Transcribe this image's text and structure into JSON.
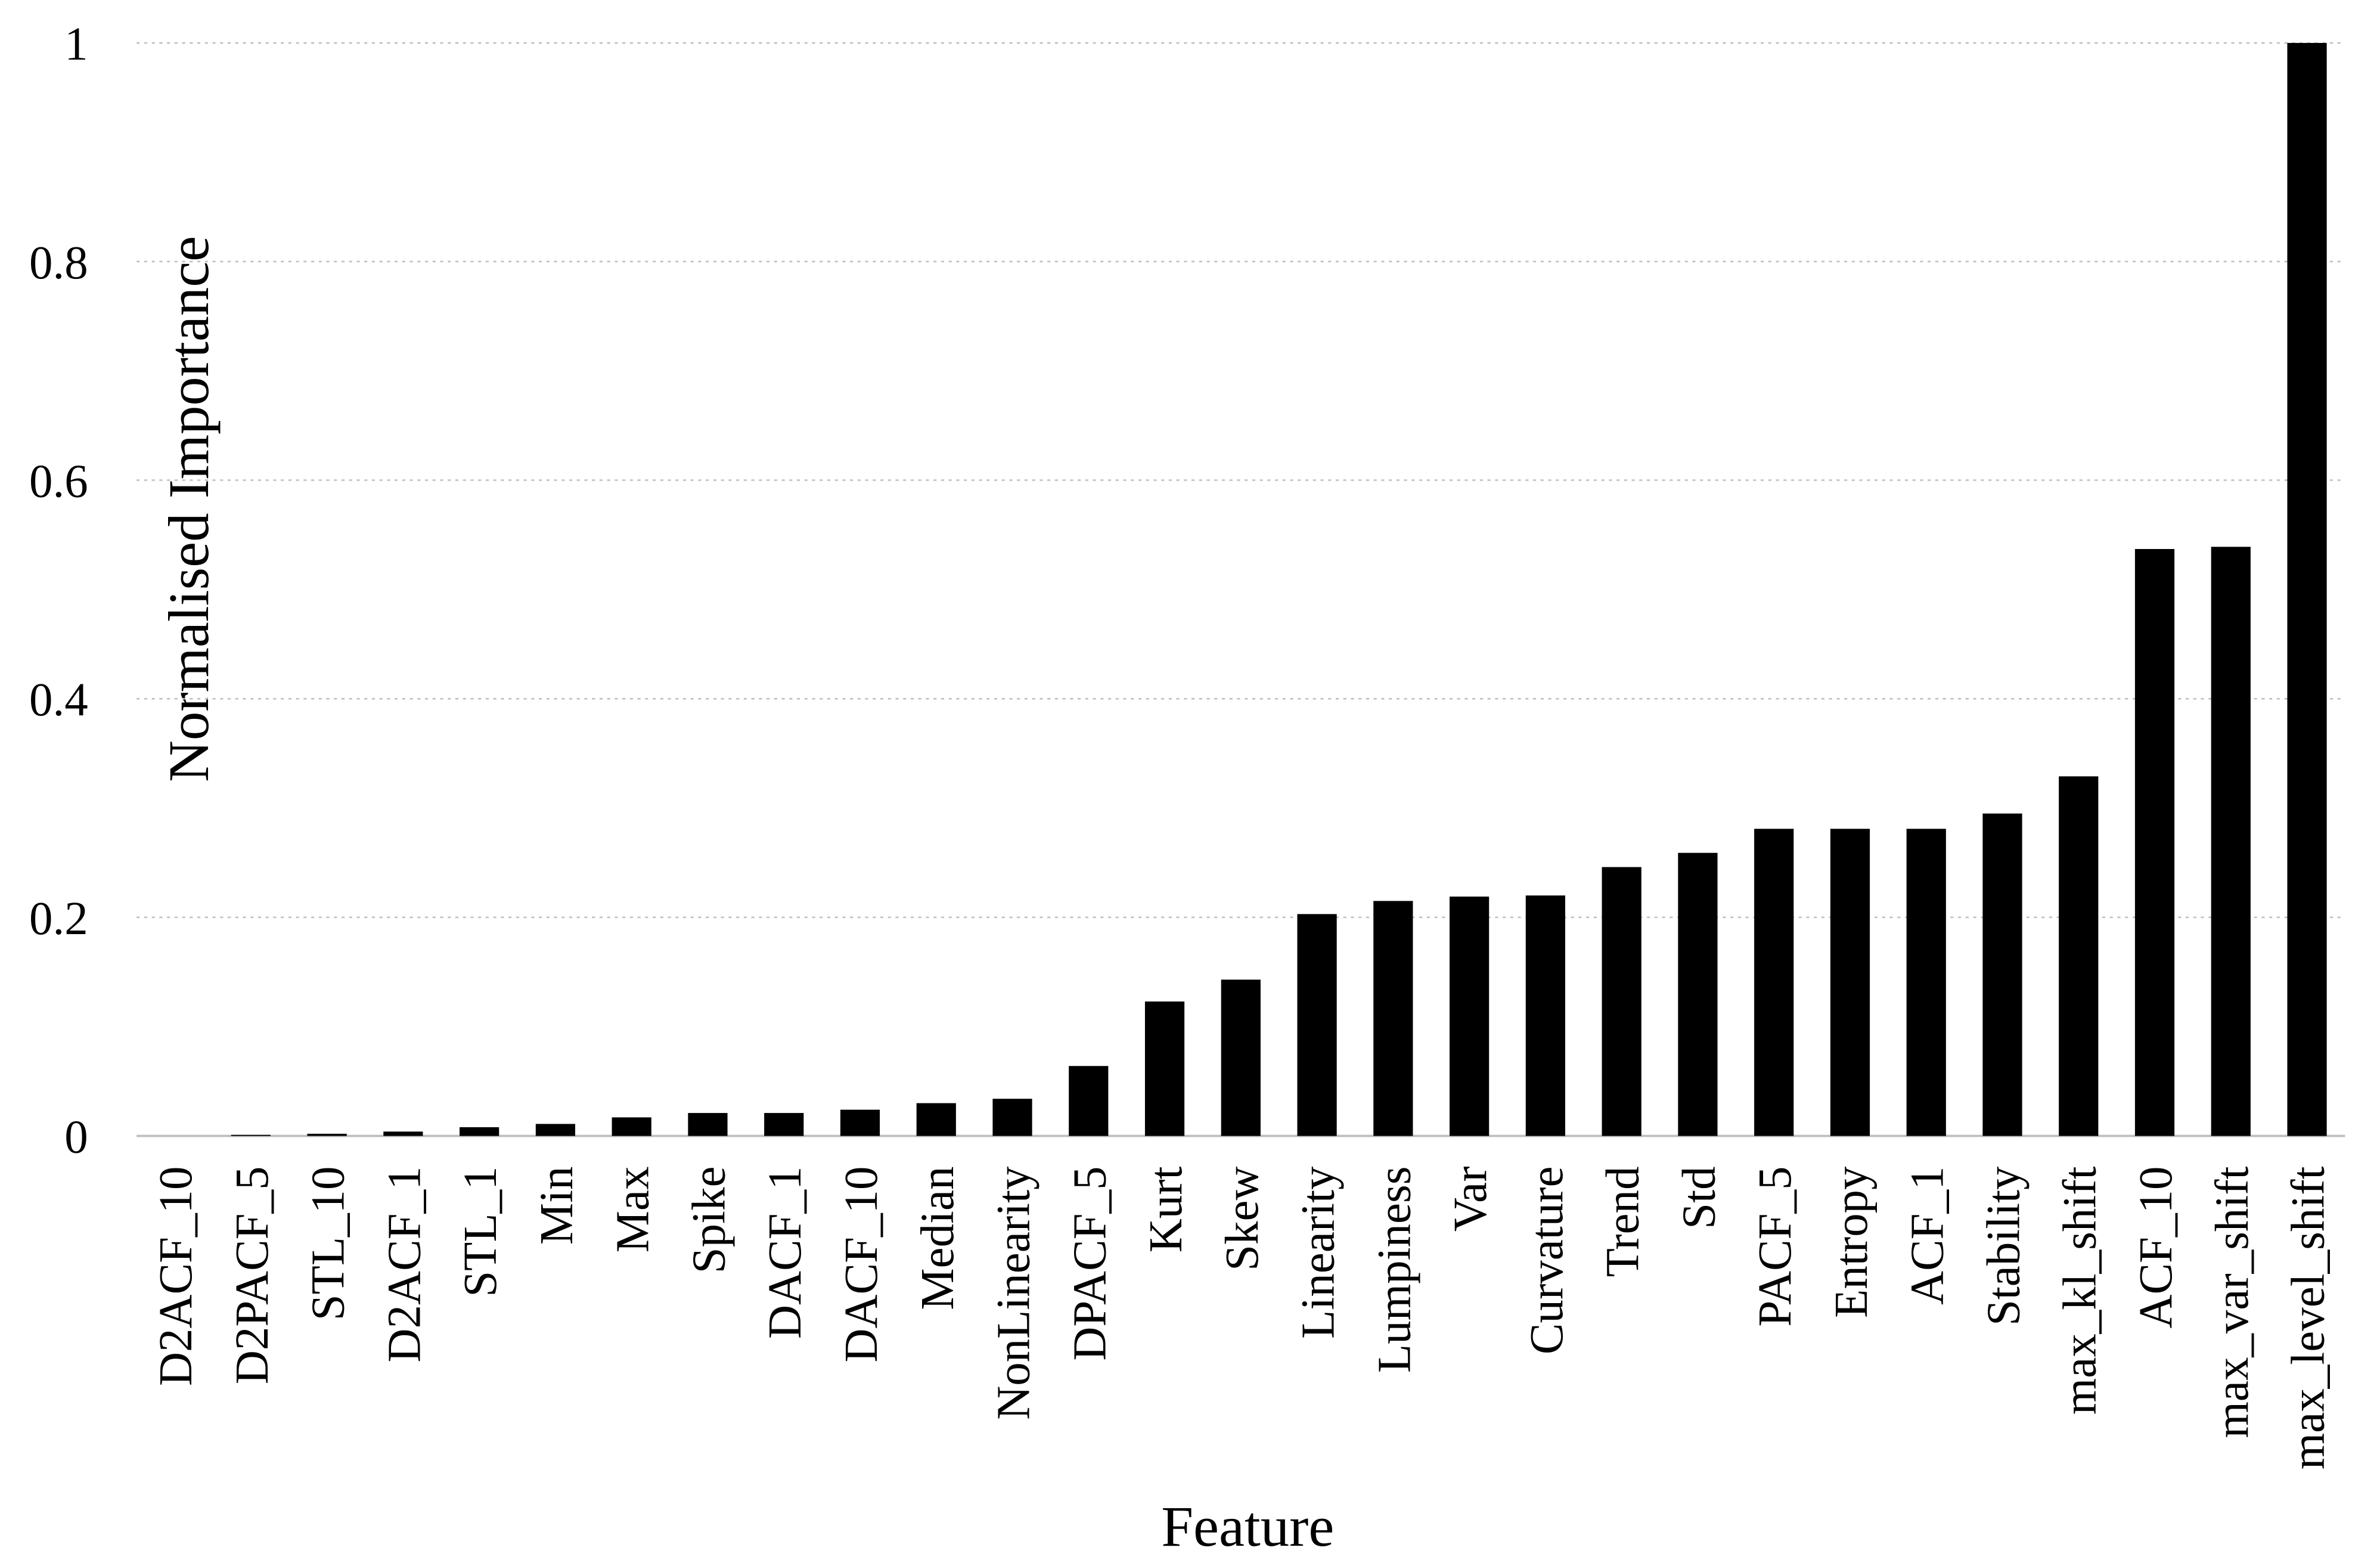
{
  "chart_data": {
    "type": "bar",
    "x_label": "Feature",
    "y_label": "Normalised Importance",
    "categories": [
      "D2ACF_10",
      "D2PACF_5",
      "STL_10",
      "D2ACF_1",
      "STL_1",
      "Min",
      "Max",
      "Spike",
      "DACF_1",
      "DACF_10",
      "Median",
      "NonLinearity",
      "DPACF_5",
      "Kurt",
      "Skew",
      "Linearity",
      "Lumpiness",
      "Var",
      "Curvature",
      "Trend",
      "Std",
      "PACF_5",
      "Entropy",
      "ACF_1",
      "Stability",
      "max_kl_shift",
      "ACF_10",
      "max_var_shift",
      "max_level_shift"
    ],
    "values": [
      0,
      0.001,
      0.002,
      0.004,
      0.008,
      0.011,
      0.017,
      0.021,
      0.021,
      0.024,
      0.03,
      0.034,
      0.064,
      0.123,
      0.143,
      0.203,
      0.215,
      0.219,
      0.22,
      0.246,
      0.259,
      0.281,
      0.281,
      0.281,
      0.295,
      0.329,
      0.537,
      0.539,
      1
    ],
    "color": "#000000",
    "ylim": [
      0,
      1
    ],
    "yticks": [
      0,
      0.2,
      0.4,
      0.6,
      0.8,
      1
    ],
    "grid": true
  }
}
